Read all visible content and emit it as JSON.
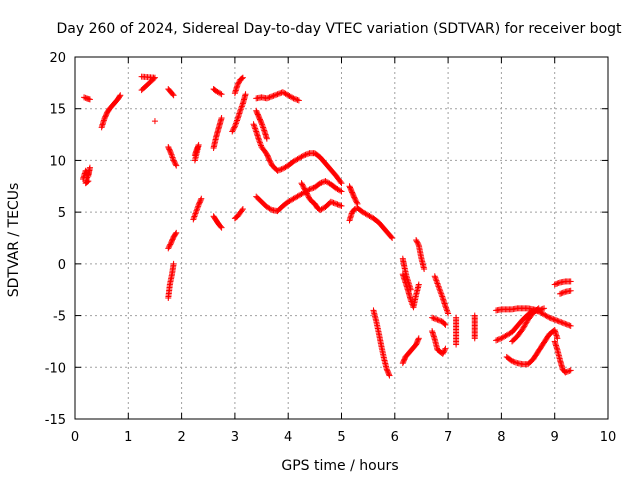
{
  "chart_data": {
    "type": "scatter",
    "title": "Day 260 of 2024, Sidereal Day-to-day VTEC variation (SDTVAR) for receiver bogt",
    "xlabel": "GPS time / hours",
    "ylabel": "SDTVAR / TECUs",
    "xlim": [
      0,
      10
    ],
    "ylim": [
      -15,
      20
    ],
    "xticks": [
      "0",
      "1",
      "2",
      "3",
      "4",
      "5",
      "6",
      "7",
      "8",
      "9",
      "10"
    ],
    "yticks": [
      "-15",
      "-10",
      "-5",
      "0",
      "5",
      "10",
      "15",
      "20"
    ],
    "grid": true,
    "marker": "+",
    "color": "#ff0000",
    "segments": [
      [
        [
          0.15,
          8.2
        ],
        [
          0.2,
          9.0
        ],
        [
          0.25,
          8.5
        ],
        [
          0.28,
          9.3
        ],
        [
          0.2,
          7.8
        ],
        [
          0.25,
          8.0
        ]
      ],
      [
        [
          0.17,
          16.1
        ],
        [
          0.22,
          16.0
        ],
        [
          0.28,
          15.9
        ]
      ],
      [
        [
          0.5,
          13.2
        ],
        [
          0.55,
          14.0
        ],
        [
          0.6,
          14.6
        ],
        [
          0.65,
          15.0
        ],
        [
          0.7,
          15.3
        ],
        [
          0.75,
          15.6
        ],
        [
          0.8,
          15.9
        ],
        [
          0.85,
          16.3
        ]
      ],
      [
        [
          1.25,
          18.1
        ],
        [
          1.5,
          18.0
        ],
        [
          1.25,
          16.8
        ],
        [
          1.5,
          13.8
        ]
      ],
      [
        [
          1.75,
          16.9
        ],
        [
          1.8,
          16.6
        ],
        [
          1.85,
          16.3
        ]
      ],
      [
        [
          1.75,
          11.3
        ],
        [
          1.8,
          10.7
        ],
        [
          1.85,
          10.0
        ],
        [
          1.9,
          9.5
        ]
      ],
      [
        [
          1.75,
          1.5
        ],
        [
          1.8,
          2.0
        ],
        [
          1.85,
          2.6
        ],
        [
          1.9,
          3.0
        ]
      ],
      [
        [
          1.75,
          -3.3
        ],
        [
          1.78,
          -2.0
        ],
        [
          1.82,
          -1.0
        ],
        [
          1.85,
          0.0
        ]
      ],
      [
        [
          2.25,
          10.5
        ],
        [
          2.28,
          11.0
        ],
        [
          2.32,
          11.5
        ],
        [
          2.25,
          10.0
        ]
      ],
      [
        [
          2.22,
          4.3
        ],
        [
          2.27,
          5.0
        ],
        [
          2.32,
          5.7
        ],
        [
          2.37,
          6.3
        ]
      ],
      [
        [
          2.6,
          16.9
        ],
        [
          2.65,
          16.7
        ],
        [
          2.75,
          16.4
        ]
      ],
      [
        [
          2.6,
          11.2
        ],
        [
          2.65,
          12.3
        ],
        [
          2.7,
          13.2
        ],
        [
          2.75,
          14.1
        ]
      ],
      [
        [
          2.6,
          4.6
        ],
        [
          2.65,
          4.2
        ],
        [
          2.7,
          3.8
        ],
        [
          2.75,
          3.5
        ]
      ],
      [
        [
          3.0,
          4.4
        ],
        [
          3.05,
          4.6
        ],
        [
          3.15,
          5.3
        ]
      ],
      [
        [
          2.95,
          12.8
        ],
        [
          3.0,
          13.3
        ],
        [
          3.05,
          14.0
        ],
        [
          3.1,
          14.8
        ],
        [
          3.15,
          15.5
        ],
        [
          3.2,
          16.4
        ]
      ],
      [
        [
          3.0,
          16.5
        ],
        [
          3.05,
          17.3
        ],
        [
          3.1,
          17.8
        ],
        [
          3.15,
          18.0
        ]
      ],
      [
        [
          3.4,
          16.0
        ],
        [
          3.5,
          16.1
        ],
        [
          3.6,
          16.0
        ],
        [
          3.7,
          16.2
        ],
        [
          3.8,
          16.4
        ],
        [
          3.9,
          16.6
        ],
        [
          4.0,
          16.3
        ],
        [
          4.1,
          16.0
        ],
        [
          4.2,
          15.8
        ]
      ],
      [
        [
          3.35,
          13.5
        ],
        [
          3.4,
          12.8
        ],
        [
          3.45,
          12.0
        ],
        [
          3.5,
          11.3
        ],
        [
          3.6,
          10.6
        ],
        [
          3.65,
          10.0
        ],
        [
          3.7,
          9.5
        ],
        [
          3.8,
          9.0
        ],
        [
          3.9,
          9.2
        ],
        [
          4.0,
          9.5
        ],
        [
          4.1,
          9.9
        ],
        [
          4.2,
          10.2
        ],
        [
          4.3,
          10.5
        ],
        [
          4.4,
          10.7
        ],
        [
          4.5,
          10.7
        ],
        [
          4.6,
          10.3
        ],
        [
          4.7,
          9.7
        ],
        [
          4.8,
          9.1
        ],
        [
          4.9,
          8.5
        ],
        [
          5.0,
          7.8
        ]
      ],
      [
        [
          3.4,
          14.8
        ],
        [
          3.45,
          14.2
        ],
        [
          3.5,
          13.6
        ],
        [
          3.55,
          12.9
        ],
        [
          3.6,
          12.1
        ]
      ],
      [
        [
          3.4,
          6.5
        ],
        [
          3.5,
          6.0
        ],
        [
          3.6,
          5.5
        ],
        [
          3.7,
          5.2
        ],
        [
          3.8,
          5.1
        ],
        [
          3.9,
          5.6
        ],
        [
          4.0,
          6.0
        ],
        [
          4.1,
          6.3
        ],
        [
          4.2,
          6.6
        ],
        [
          4.3,
          6.9
        ],
        [
          4.4,
          7.2
        ],
        [
          4.5,
          7.4
        ],
        [
          4.6,
          7.8
        ],
        [
          4.7,
          8.0
        ],
        [
          4.8,
          7.7
        ],
        [
          4.9,
          7.3
        ],
        [
          5.0,
          7.0
        ]
      ],
      [
        [
          4.25,
          7.8
        ],
        [
          4.3,
          7.3
        ],
        [
          4.35,
          6.8
        ],
        [
          4.4,
          6.3
        ],
        [
          4.45,
          6.0
        ],
        [
          4.5,
          5.8
        ],
        [
          4.55,
          5.4
        ],
        [
          4.6,
          5.2
        ],
        [
          4.7,
          5.5
        ],
        [
          4.8,
          6.0
        ],
        [
          4.9,
          5.8
        ],
        [
          5.0,
          5.6
        ]
      ],
      [
        [
          5.15,
          4.2
        ],
        [
          5.2,
          5.0
        ],
        [
          5.25,
          5.3
        ],
        [
          5.3,
          5.4
        ],
        [
          5.4,
          5.0
        ],
        [
          5.5,
          4.7
        ],
        [
          5.6,
          4.4
        ],
        [
          5.7,
          4.0
        ],
        [
          5.8,
          3.4
        ],
        [
          5.9,
          2.8
        ],
        [
          5.95,
          2.5
        ]
      ],
      [
        [
          5.15,
          7.5
        ],
        [
          5.2,
          6.9
        ],
        [
          5.25,
          6.3
        ],
        [
          5.3,
          5.8
        ]
      ],
      [
        [
          5.6,
          -4.5
        ],
        [
          5.65,
          -5.5
        ],
        [
          5.7,
          -6.7
        ],
        [
          5.75,
          -8.0
        ],
        [
          5.8,
          -9.2
        ],
        [
          5.85,
          -10.2
        ],
        [
          5.9,
          -10.8
        ]
      ],
      [
        [
          6.15,
          -9.6
        ],
        [
          6.2,
          -9.0
        ],
        [
          6.3,
          -8.4
        ],
        [
          6.4,
          -7.8
        ],
        [
          6.45,
          -7.2
        ]
      ],
      [
        [
          6.15,
          -1.0
        ],
        [
          6.2,
          -1.8
        ],
        [
          6.25,
          -2.6
        ],
        [
          6.3,
          -3.5
        ],
        [
          6.35,
          -4.2
        ],
        [
          6.4,
          -3.0
        ],
        [
          6.45,
          -2.0
        ]
      ],
      [
        [
          6.15,
          0.5
        ],
        [
          6.18,
          -0.3
        ],
        [
          6.22,
          -1.2
        ],
        [
          6.3,
          -2.5
        ]
      ],
      [
        [
          6.4,
          2.3
        ],
        [
          6.45,
          1.8
        ],
        [
          6.5,
          0.5
        ],
        [
          6.55,
          -0.5
        ]
      ],
      [
        [
          6.7,
          -5.2
        ],
        [
          6.8,
          -5.4
        ],
        [
          6.9,
          -5.6
        ],
        [
          6.95,
          -5.9
        ]
      ],
      [
        [
          6.7,
          -6.5
        ],
        [
          6.75,
          -7.3
        ],
        [
          6.8,
          -8.3
        ],
        [
          6.9,
          -8.7
        ],
        [
          6.95,
          -8.2
        ]
      ],
      [
        [
          6.75,
          -1.2
        ],
        [
          6.8,
          -1.9
        ],
        [
          6.85,
          -2.6
        ],
        [
          6.9,
          -3.3
        ],
        [
          6.95,
          -4.1
        ],
        [
          7.0,
          -4.8
        ]
      ],
      [
        [
          7.15,
          -5.2
        ],
        [
          7.15,
          -6.2
        ],
        [
          7.15,
          -7.8
        ],
        [
          7.5,
          -5.0
        ],
        [
          7.5,
          -6.1
        ],
        [
          7.5,
          -7.2
        ]
      ],
      [
        [
          7.9,
          -4.5
        ],
        [
          8.0,
          -4.4
        ],
        [
          8.1,
          -4.4
        ],
        [
          8.2,
          -4.4
        ],
        [
          8.3,
          -4.3
        ],
        [
          8.4,
          -4.3
        ],
        [
          8.5,
          -4.3
        ],
        [
          8.6,
          -4.4
        ],
        [
          8.7,
          -4.5
        ],
        [
          8.8,
          -4.3
        ]
      ],
      [
        [
          7.9,
          -7.4
        ],
        [
          8.0,
          -7.2
        ],
        [
          8.1,
          -6.9
        ],
        [
          8.2,
          -6.6
        ],
        [
          8.3,
          -6.0
        ],
        [
          8.4,
          -5.4
        ],
        [
          8.5,
          -4.9
        ],
        [
          8.6,
          -4.5
        ],
        [
          8.7,
          -4.6
        ],
        [
          8.8,
          -4.9
        ],
        [
          8.9,
          -5.2
        ],
        [
          9.0,
          -5.4
        ],
        [
          9.1,
          -5.6
        ],
        [
          9.2,
          -5.8
        ],
        [
          9.3,
          -6.0
        ]
      ],
      [
        [
          8.2,
          -7.5
        ],
        [
          8.3,
          -7.0
        ],
        [
          8.4,
          -6.3
        ],
        [
          8.5,
          -5.4
        ],
        [
          8.6,
          -4.7
        ],
        [
          8.7,
          -4.3
        ]
      ],
      [
        [
          8.1,
          -9.0
        ],
        [
          8.2,
          -9.4
        ],
        [
          8.3,
          -9.6
        ],
        [
          8.4,
          -9.7
        ],
        [
          8.5,
          -9.7
        ],
        [
          8.6,
          -9.2
        ],
        [
          8.7,
          -8.4
        ],
        [
          8.8,
          -7.6
        ],
        [
          8.9,
          -6.8
        ],
        [
          9.0,
          -6.4
        ],
        [
          9.05,
          -7.2
        ]
      ],
      [
        [
          9.0,
          -7.5
        ],
        [
          9.05,
          -8.3
        ],
        [
          9.1,
          -9.3
        ],
        [
          9.15,
          -10.2
        ],
        [
          9.2,
          -10.5
        ],
        [
          9.25,
          -10.4
        ],
        [
          9.3,
          -10.3
        ]
      ],
      [
        [
          9.0,
          -2.0
        ],
        [
          9.1,
          -1.8
        ],
        [
          9.2,
          -1.7
        ],
        [
          9.3,
          -1.7
        ]
      ],
      [
        [
          9.1,
          -2.9
        ],
        [
          9.2,
          -2.7
        ],
        [
          9.3,
          -2.6
        ]
      ]
    ]
  }
}
